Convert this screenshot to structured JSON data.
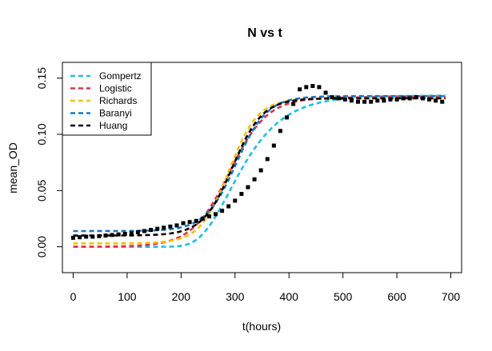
{
  "chart_data": {
    "type": "line",
    "title": "N vs t",
    "xlabel": "t(hours)",
    "ylabel": "mean_OD",
    "xlim": [
      -20,
      720
    ],
    "ylim": [
      -0.023,
      0.164
    ],
    "xticks": [
      0,
      100,
      200,
      300,
      400,
      500,
      600,
      700
    ],
    "xtick_labels": [
      "0",
      "100",
      "200",
      "300",
      "400",
      "500",
      "600",
      "700"
    ],
    "yticks": [
      0.0,
      0.05,
      0.1,
      0.15
    ],
    "ytick_labels": [
      "0.00",
      "0.05",
      "0.10",
      "0.15"
    ],
    "grid": false,
    "legend_position": "top-left",
    "observed": {
      "x": [
        0,
        12,
        24,
        36,
        48,
        60,
        72,
        84,
        96,
        108,
        120,
        132,
        144,
        156,
        168,
        180,
        192,
        204,
        216,
        228,
        240,
        252,
        264,
        276,
        288,
        300,
        312,
        324,
        336,
        348,
        360,
        372,
        384,
        396,
        408,
        420,
        432,
        444,
        456,
        468,
        480,
        492,
        504,
        516,
        528,
        540,
        552,
        564,
        576,
        588,
        600,
        612,
        624,
        636,
        648,
        660,
        672,
        684
      ],
      "y": [
        0.008,
        0.0085,
        0.009,
        0.009,
        0.0095,
        0.01,
        0.0105,
        0.011,
        0.0115,
        0.012,
        0.013,
        0.014,
        0.015,
        0.016,
        0.017,
        0.018,
        0.019,
        0.021,
        0.022,
        0.023,
        0.025,
        0.027,
        0.029,
        0.032,
        0.036,
        0.041,
        0.047,
        0.053,
        0.06,
        0.068,
        0.078,
        0.09,
        0.103,
        0.115,
        0.127,
        0.14,
        0.142,
        0.143,
        0.142,
        0.137,
        0.133,
        0.132,
        0.131,
        0.13,
        0.129,
        0.129,
        0.129,
        0.13,
        0.13,
        0.131,
        0.131,
        0.132,
        0.132,
        0.133,
        0.132,
        0.131,
        0.13,
        0.129
      ]
    },
    "series": [
      {
        "name": "Gompertz",
        "color": "#1fbfe0",
        "params": {
          "model": "gompertz",
          "y0": 0.0,
          "A": 0.1345,
          "mu": 0.0009,
          "lag": 235
        }
      },
      {
        "name": "Logistic",
        "color": "#e0304a",
        "params": {
          "model": "logistic",
          "y0": 0.0,
          "A": 0.133,
          "mu": 0.00095,
          "lag": 220
        }
      },
      {
        "name": "Richards",
        "color": "#f2c200",
        "params": {
          "model": "logistic",
          "y0": 0.003,
          "A": 0.132,
          "mu": 0.0012,
          "lag": 235
        }
      },
      {
        "name": "Baranyi",
        "color": "#1a78c4",
        "params": {
          "model": "logistic",
          "y0": 0.014,
          "A": 0.134,
          "mu": 0.00105,
          "lag": 245
        }
      },
      {
        "name": "Huang",
        "color": "#000000",
        "params": {
          "model": "logistic",
          "y0": 0.01,
          "A": 0.132,
          "mu": 0.0011,
          "lag": 240
        }
      }
    ]
  }
}
